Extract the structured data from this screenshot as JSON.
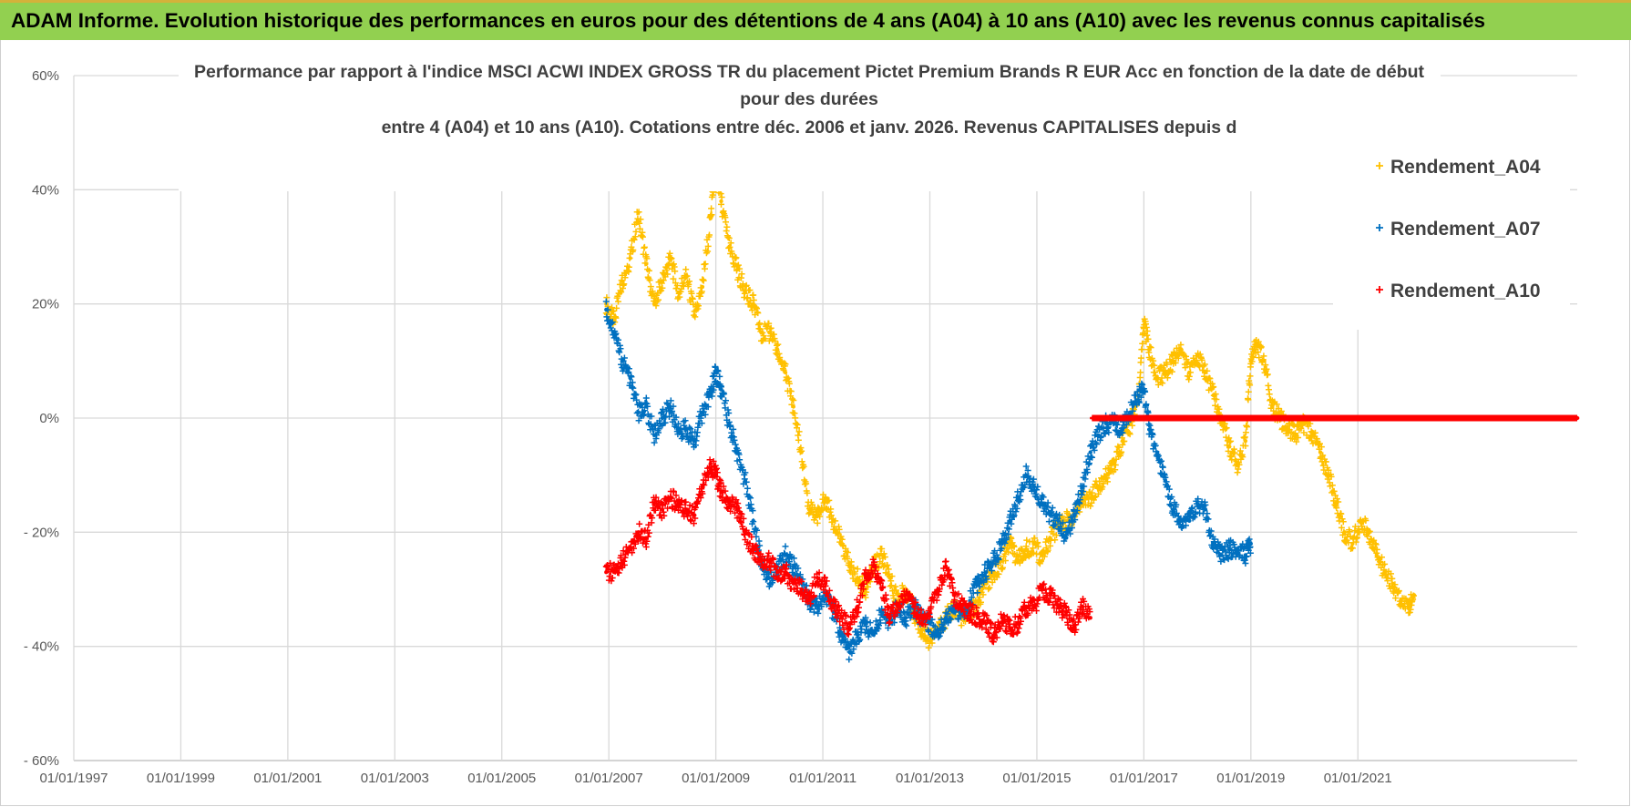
{
  "banner": {
    "title": "ADAM Informe. Evolution historique des performances en euros pour des détentions de 4 ans (A04) à 10 ans (A10) avec les revenus connus capitalisés"
  },
  "chart_data": {
    "type": "scatter",
    "title_lines": [
      "Performance par rapport à l'indice MSCI ACWI INDEX GROSS TR  du placement Pictet Premium Brands R EUR Acc en fonction de la date de début",
      "pour des durées",
      "entre 4 (A04) et 10 ans (A10). Cotations entre déc. 2006 et janv. 2026. Revenus CAPITALISES depuis d"
    ],
    "xlabel": "",
    "ylabel": "",
    "x_range": [
      1997.0,
      2025.1
    ],
    "y_range": [
      -60,
      60
    ],
    "x_ticks": [
      "01/01/1997",
      "01/01/1999",
      "01/01/2001",
      "01/01/2003",
      "01/01/2005",
      "01/01/2007",
      "01/01/2009",
      "01/01/2011",
      "01/01/2013",
      "01/01/2015",
      "01/01/2017",
      "01/01/2019",
      "01/01/2021"
    ],
    "y_ticks": [
      {
        "value": 60,
        "label": "60%"
      },
      {
        "value": 40,
        "label": "40%"
      },
      {
        "value": 20,
        "label": "20%"
      },
      {
        "value": 0,
        "label": "0%"
      },
      {
        "value": -20,
        "label": "- 20%"
      },
      {
        "value": -40,
        "label": "- 40%"
      },
      {
        "value": -60,
        "label": "- 60%"
      }
    ],
    "grid": true,
    "legend_position": "top-right",
    "series": [
      {
        "name": "Rendement_A04",
        "color": "#ffc000",
        "points": [
          [
            2006.95,
            20
          ],
          [
            2007.1,
            17
          ],
          [
            2007.25,
            24
          ],
          [
            2007.4,
            28
          ],
          [
            2007.55,
            36
          ],
          [
            2007.7,
            27
          ],
          [
            2007.85,
            20
          ],
          [
            2008.0,
            24
          ],
          [
            2008.15,
            28
          ],
          [
            2008.3,
            22
          ],
          [
            2008.45,
            25
          ],
          [
            2008.6,
            18
          ],
          [
            2008.75,
            23
          ],
          [
            2008.9,
            35
          ],
          [
            2009.0,
            45
          ],
          [
            2009.1,
            38
          ],
          [
            2009.25,
            30
          ],
          [
            2009.4,
            26
          ],
          [
            2009.55,
            22
          ],
          [
            2009.7,
            20
          ],
          [
            2009.85,
            15
          ],
          [
            2010.0,
            15
          ],
          [
            2010.15,
            12
          ],
          [
            2010.3,
            8
          ],
          [
            2010.45,
            2
          ],
          [
            2010.6,
            -6
          ],
          [
            2010.75,
            -16
          ],
          [
            2010.9,
            -17
          ],
          [
            2011.05,
            -14
          ],
          [
            2011.2,
            -18
          ],
          [
            2011.35,
            -22
          ],
          [
            2011.5,
            -26
          ],
          [
            2011.65,
            -28
          ],
          [
            2011.8,
            -30
          ],
          [
            2011.95,
            -26
          ],
          [
            2012.1,
            -24
          ],
          [
            2012.25,
            -28
          ],
          [
            2012.4,
            -32
          ],
          [
            2012.55,
            -30
          ],
          [
            2012.7,
            -34
          ],
          [
            2012.85,
            -37
          ],
          [
            2013.0,
            -39
          ],
          [
            2013.15,
            -37
          ],
          [
            2013.3,
            -35
          ],
          [
            2013.45,
            -33
          ],
          [
            2013.6,
            -35
          ],
          [
            2013.75,
            -34
          ],
          [
            2013.9,
            -32
          ],
          [
            2014.05,
            -29
          ],
          [
            2014.2,
            -27
          ],
          [
            2014.35,
            -25
          ],
          [
            2014.5,
            -22
          ],
          [
            2014.65,
            -25
          ],
          [
            2014.8,
            -23
          ],
          [
            2014.95,
            -22
          ],
          [
            2015.1,
            -25
          ],
          [
            2015.25,
            -21
          ],
          [
            2015.4,
            -19
          ],
          [
            2015.55,
            -18
          ],
          [
            2015.7,
            -17
          ],
          [
            2015.85,
            -14
          ],
          [
            2016.0,
            -14
          ],
          [
            2016.15,
            -12
          ],
          [
            2016.3,
            -10
          ],
          [
            2016.45,
            -8
          ],
          [
            2016.6,
            -4
          ],
          [
            2016.75,
            -1
          ],
          [
            2016.9,
            4
          ],
          [
            2017.0,
            17
          ],
          [
            2017.1,
            12
          ],
          [
            2017.25,
            7
          ],
          [
            2017.4,
            8
          ],
          [
            2017.55,
            10
          ],
          [
            2017.7,
            12
          ],
          [
            2017.85,
            8
          ],
          [
            2018.0,
            11
          ],
          [
            2018.15,
            8
          ],
          [
            2018.3,
            4
          ],
          [
            2018.45,
            0
          ],
          [
            2018.6,
            -5
          ],
          [
            2018.75,
            -8
          ],
          [
            2018.9,
            -4
          ],
          [
            2019.0,
            10
          ],
          [
            2019.1,
            13
          ],
          [
            2019.25,
            10
          ],
          [
            2019.4,
            2
          ],
          [
            2019.55,
            0
          ],
          [
            2019.7,
            -2
          ],
          [
            2019.85,
            -3
          ],
          [
            2020.0,
            -1
          ],
          [
            2020.15,
            -3
          ],
          [
            2020.3,
            -6
          ],
          [
            2020.45,
            -10
          ],
          [
            2020.6,
            -15
          ],
          [
            2020.75,
            -20
          ],
          [
            2020.9,
            -22
          ],
          [
            2021.05,
            -18
          ],
          [
            2021.2,
            -20
          ],
          [
            2021.35,
            -24
          ],
          [
            2021.5,
            -27
          ],
          [
            2021.65,
            -29
          ],
          [
            2021.8,
            -32
          ],
          [
            2021.95,
            -33
          ],
          [
            2022.05,
            -31
          ]
        ]
      },
      {
        "name": "Rendement_A07",
        "color": "#0070c0",
        "points": [
          [
            2006.95,
            19
          ],
          [
            2007.1,
            15
          ],
          [
            2007.25,
            10
          ],
          [
            2007.4,
            7
          ],
          [
            2007.55,
            1
          ],
          [
            2007.7,
            2
          ],
          [
            2007.85,
            -3
          ],
          [
            2008.0,
            0
          ],
          [
            2008.15,
            2
          ],
          [
            2008.3,
            -2
          ],
          [
            2008.45,
            -2
          ],
          [
            2008.6,
            -4
          ],
          [
            2008.75,
            1
          ],
          [
            2008.9,
            4
          ],
          [
            2009.0,
            8
          ],
          [
            2009.1,
            5
          ],
          [
            2009.25,
            -1
          ],
          [
            2009.4,
            -6
          ],
          [
            2009.55,
            -11
          ],
          [
            2009.7,
            -18
          ],
          [
            2009.85,
            -25
          ],
          [
            2010.0,
            -28
          ],
          [
            2010.15,
            -26
          ],
          [
            2010.3,
            -24
          ],
          [
            2010.45,
            -26
          ],
          [
            2010.6,
            -28
          ],
          [
            2010.75,
            -32
          ],
          [
            2010.9,
            -33
          ],
          [
            2011.05,
            -31
          ],
          [
            2011.2,
            -34
          ],
          [
            2011.35,
            -38
          ],
          [
            2011.5,
            -41
          ],
          [
            2011.65,
            -38
          ],
          [
            2011.8,
            -36
          ],
          [
            2011.95,
            -38
          ],
          [
            2012.1,
            -34
          ],
          [
            2012.25,
            -36
          ],
          [
            2012.4,
            -33
          ],
          [
            2012.55,
            -35
          ],
          [
            2012.7,
            -33
          ],
          [
            2012.85,
            -35
          ],
          [
            2013.0,
            -36
          ],
          [
            2013.15,
            -38
          ],
          [
            2013.3,
            -35
          ],
          [
            2013.45,
            -34
          ],
          [
            2013.6,
            -34
          ],
          [
            2013.75,
            -32
          ],
          [
            2013.9,
            -29
          ],
          [
            2014.05,
            -27
          ],
          [
            2014.2,
            -25
          ],
          [
            2014.35,
            -22
          ],
          [
            2014.5,
            -18
          ],
          [
            2014.65,
            -14
          ],
          [
            2014.8,
            -10
          ],
          [
            2014.95,
            -12
          ],
          [
            2015.1,
            -15
          ],
          [
            2015.25,
            -17
          ],
          [
            2015.4,
            -18
          ],
          [
            2015.55,
            -21
          ],
          [
            2015.7,
            -17
          ],
          [
            2015.85,
            -12
          ],
          [
            2016.0,
            -6
          ],
          [
            2016.15,
            -3
          ],
          [
            2016.3,
            -1
          ],
          [
            2016.45,
            -1
          ],
          [
            2016.6,
            -2
          ],
          [
            2016.75,
            1
          ],
          [
            2016.9,
            4
          ],
          [
            2017.0,
            5
          ],
          [
            2017.1,
            -2
          ],
          [
            2017.25,
            -6
          ],
          [
            2017.4,
            -11
          ],
          [
            2017.55,
            -16
          ],
          [
            2017.7,
            -18
          ],
          [
            2017.85,
            -18
          ],
          [
            2018.0,
            -15
          ],
          [
            2018.15,
            -16
          ],
          [
            2018.3,
            -22
          ],
          [
            2018.45,
            -24
          ],
          [
            2018.6,
            -23
          ],
          [
            2018.75,
            -23
          ],
          [
            2018.9,
            -24
          ],
          [
            2019.0,
            -22
          ]
        ]
      },
      {
        "name": "Rendement_A10",
        "color": "#ff0000",
        "points": [
          [
            2006.95,
            -27
          ],
          [
            2007.1,
            -27
          ],
          [
            2007.25,
            -25
          ],
          [
            2007.4,
            -23
          ],
          [
            2007.55,
            -20
          ],
          [
            2007.7,
            -21
          ],
          [
            2007.85,
            -15
          ],
          [
            2008.0,
            -16
          ],
          [
            2008.15,
            -14
          ],
          [
            2008.3,
            -15
          ],
          [
            2008.45,
            -16
          ],
          [
            2008.6,
            -17
          ],
          [
            2008.75,
            -12
          ],
          [
            2008.9,
            -8
          ],
          [
            2009.0,
            -10
          ],
          [
            2009.1,
            -13
          ],
          [
            2009.25,
            -15
          ],
          [
            2009.4,
            -16
          ],
          [
            2009.55,
            -20
          ],
          [
            2009.7,
            -23
          ],
          [
            2009.85,
            -25
          ],
          [
            2010.0,
            -25
          ],
          [
            2010.15,
            -27
          ],
          [
            2010.3,
            -27
          ],
          [
            2010.45,
            -29
          ],
          [
            2010.6,
            -30
          ],
          [
            2010.75,
            -32
          ],
          [
            2010.9,
            -28
          ],
          [
            2011.05,
            -29
          ],
          [
            2011.2,
            -33
          ],
          [
            2011.35,
            -35
          ],
          [
            2011.5,
            -37
          ],
          [
            2011.65,
            -33
          ],
          [
            2011.8,
            -28
          ],
          [
            2011.95,
            -26
          ],
          [
            2012.1,
            -30
          ],
          [
            2012.25,
            -35
          ],
          [
            2012.4,
            -33
          ],
          [
            2012.55,
            -31
          ],
          [
            2012.7,
            -33
          ],
          [
            2012.85,
            -35
          ],
          [
            2013.0,
            -34
          ],
          [
            2013.15,
            -30
          ],
          [
            2013.3,
            -26
          ],
          [
            2013.45,
            -31
          ],
          [
            2013.6,
            -33
          ],
          [
            2013.75,
            -34
          ],
          [
            2013.9,
            -35
          ],
          [
            2014.05,
            -36
          ],
          [
            2014.2,
            -38
          ],
          [
            2014.35,
            -35
          ],
          [
            2014.5,
            -37
          ],
          [
            2014.65,
            -36
          ],
          [
            2014.8,
            -33
          ],
          [
            2014.95,
            -33
          ],
          [
            2015.1,
            -30
          ],
          [
            2015.25,
            -31
          ],
          [
            2015.4,
            -33
          ],
          [
            2015.55,
            -34
          ],
          [
            2015.7,
            -37
          ],
          [
            2015.85,
            -33
          ],
          [
            2016.0,
            -35
          ]
        ]
      },
      {
        "name": "Rendement_A10",
        "color": "#ff0000",
        "points": [
          [
            2016.05,
            0
          ],
          [
            2016.4,
            0
          ],
          [
            2016.75,
            0
          ],
          [
            2017.1,
            0
          ],
          [
            2017.45,
            0
          ],
          [
            2017.8,
            0
          ],
          [
            2018.15,
            0
          ],
          [
            2018.5,
            0
          ],
          [
            2018.85,
            0
          ],
          [
            2019.2,
            0
          ],
          [
            2019.55,
            0
          ],
          [
            2019.9,
            0
          ],
          [
            2020.25,
            0
          ],
          [
            2020.6,
            0
          ],
          [
            2020.95,
            0
          ],
          [
            2021.3,
            0
          ],
          [
            2021.65,
            0
          ],
          [
            2022.0,
            0
          ],
          [
            2022.35,
            0
          ],
          [
            2022.7,
            0
          ],
          [
            2023.05,
            0
          ],
          [
            2023.4,
            0
          ],
          [
            2023.75,
            0
          ],
          [
            2024.1,
            0
          ],
          [
            2024.45,
            0
          ],
          [
            2024.8,
            0
          ],
          [
            2025.1,
            0
          ]
        ]
      }
    ],
    "legend": [
      {
        "name": "Rendement_A04",
        "color": "#ffc000"
      },
      {
        "name": "Rendement_A07",
        "color": "#0070c0"
      },
      {
        "name": "Rendement_A10",
        "color": "#ff0000"
      }
    ]
  }
}
